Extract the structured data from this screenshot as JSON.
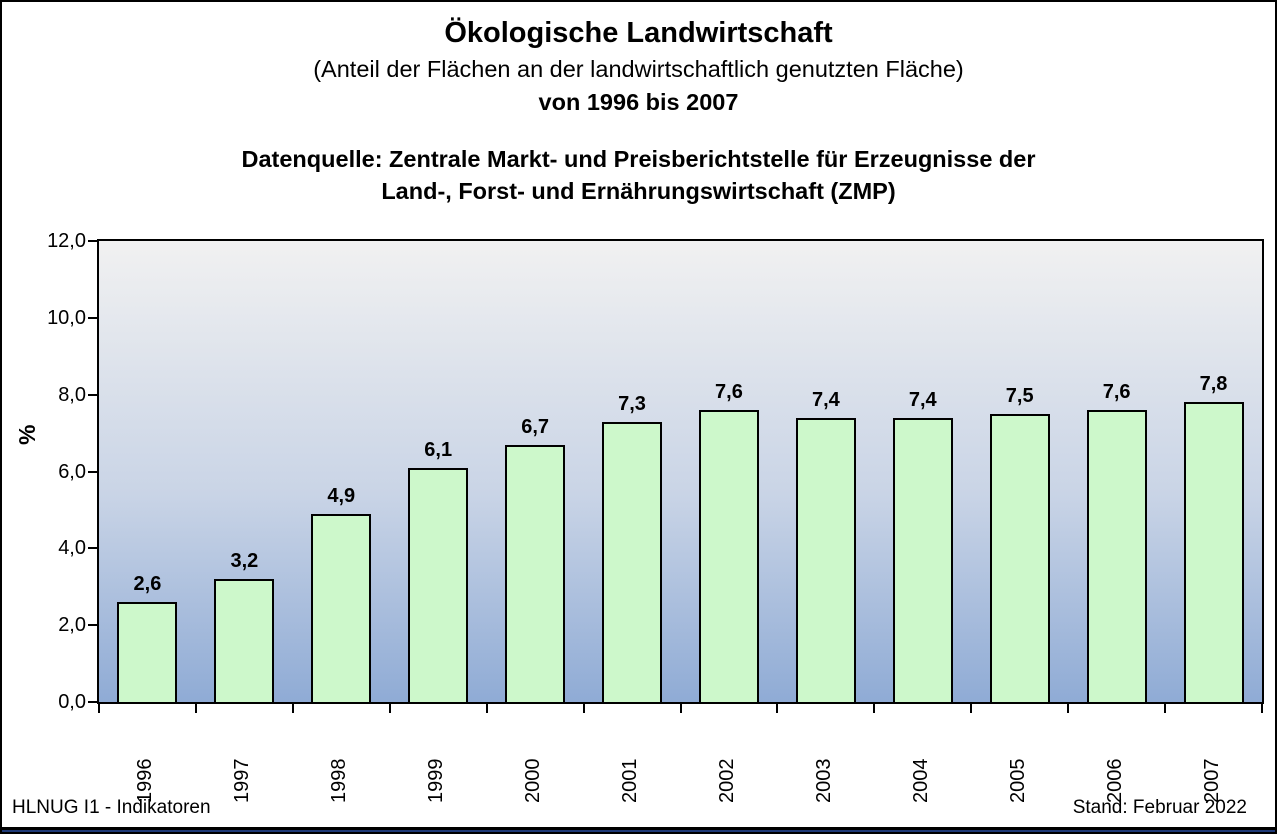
{
  "title": {
    "line1": "Ökologische Landwirtschaft",
    "line2": "(Anteil der Flächen an der landwirtschaftlich genutzten Fläche)",
    "line3": "von 1996 bis 2007",
    "source_line1": "Datenquelle: Zentrale Markt- und Preisberichtstelle für Erzeugnisse der",
    "source_line2": "Land-, Forst- und Ernährungswirtschaft (ZMP)"
  },
  "chart_data": {
    "type": "bar",
    "title": "Ökologische Landwirtschaft (Anteil der Flächen an der landwirtschaftlich genutzten Fläche) von 1996 bis 2007",
    "categories": [
      "1996",
      "1997",
      "1998",
      "1999",
      "2000",
      "2001",
      "2002",
      "2003",
      "2004",
      "2005",
      "2006",
      "2007"
    ],
    "values": [
      2.6,
      3.2,
      4.9,
      6.1,
      6.7,
      7.3,
      7.6,
      7.4,
      7.4,
      7.5,
      7.6,
      7.8
    ],
    "value_labels": [
      "2,6",
      "3,2",
      "4,9",
      "6,1",
      "6,7",
      "7,3",
      "7,6",
      "7,4",
      "7,4",
      "7,5",
      "7,6",
      "7,8"
    ],
    "xlabel": "",
    "ylabel": "%",
    "ylim": [
      0,
      12
    ],
    "ytick_step": 2,
    "ytick_labels": [
      "0,0",
      "2,0",
      "4,0",
      "6,0",
      "8,0",
      "10,0",
      "12,0"
    ],
    "grid": false,
    "legend": false
  },
  "footer": {
    "left": "HLNUG I1 - Indikatoren",
    "right": "Stand: Februar 2022"
  },
  "colors": {
    "bar_fill": "#cdf8cb",
    "bar_border": "#000000",
    "plot_gradient_top": "#f1f1f1",
    "plot_gradient_mid": "#c9d4e6",
    "plot_gradient_bottom": "#8fabd5",
    "bottom_strip": "#1f3a77",
    "frame_border": "#000000"
  }
}
